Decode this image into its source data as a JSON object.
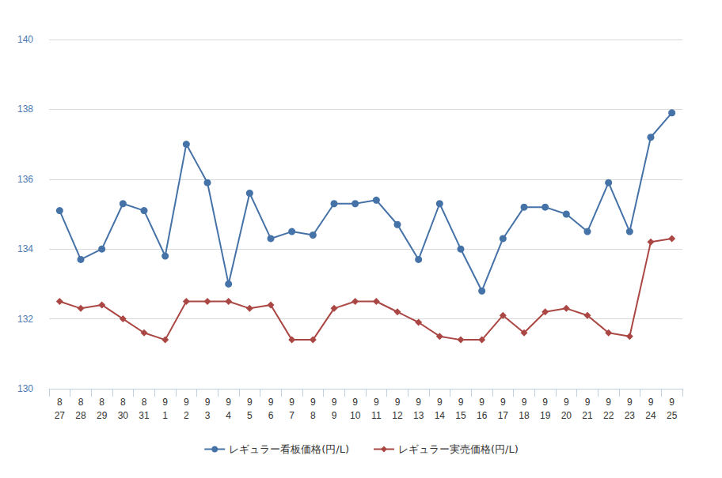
{
  "chart_data": {
    "type": "line",
    "categories": [
      "8\n27",
      "8\n28",
      "8\n29",
      "8\n30",
      "8\n31",
      "9\n1",
      "9\n2",
      "9\n3",
      "9\n4",
      "9\n5",
      "9\n6",
      "9\n7",
      "9\n8",
      "9\n9",
      "9\n10",
      "9\n11",
      "9\n12",
      "9\n13",
      "9\n14",
      "9\n15",
      "9\n16",
      "9\n17",
      "9\n18",
      "9\n19",
      "9\n20",
      "9\n21",
      "9\n22",
      "9\n23",
      "9\n24",
      "9\n25"
    ],
    "series": [
      {
        "name": "レギュラー看板価格(円/L)",
        "color": "#4572A7",
        "marker": "circle",
        "values": [
          135.1,
          133.7,
          134.0,
          135.3,
          135.1,
          133.8,
          137.0,
          135.9,
          133.0,
          135.6,
          134.3,
          134.5,
          134.4,
          135.3,
          135.3,
          135.4,
          134.7,
          133.7,
          135.3,
          134.0,
          132.8,
          134.3,
          135.2,
          135.2,
          135.0,
          134.5,
          135.9,
          134.5,
          137.2,
          137.9
        ]
      },
      {
        "name": "レギュラー実売価格(円/L)",
        "color": "#AA4643",
        "marker": "diamond",
        "values": [
          132.5,
          132.3,
          132.4,
          132.0,
          131.6,
          131.4,
          132.5,
          132.5,
          132.5,
          132.3,
          132.4,
          131.4,
          131.4,
          132.3,
          132.5,
          132.5,
          132.2,
          131.9,
          131.5,
          131.4,
          131.4,
          132.1,
          131.6,
          132.2,
          132.3,
          132.1,
          131.6,
          131.5,
          134.2,
          134.3
        ]
      }
    ],
    "ylim": [
      130,
      140
    ],
    "yticks": [
      130,
      132,
      134,
      136,
      138,
      140
    ],
    "grid": true,
    "legend": "bottom"
  }
}
